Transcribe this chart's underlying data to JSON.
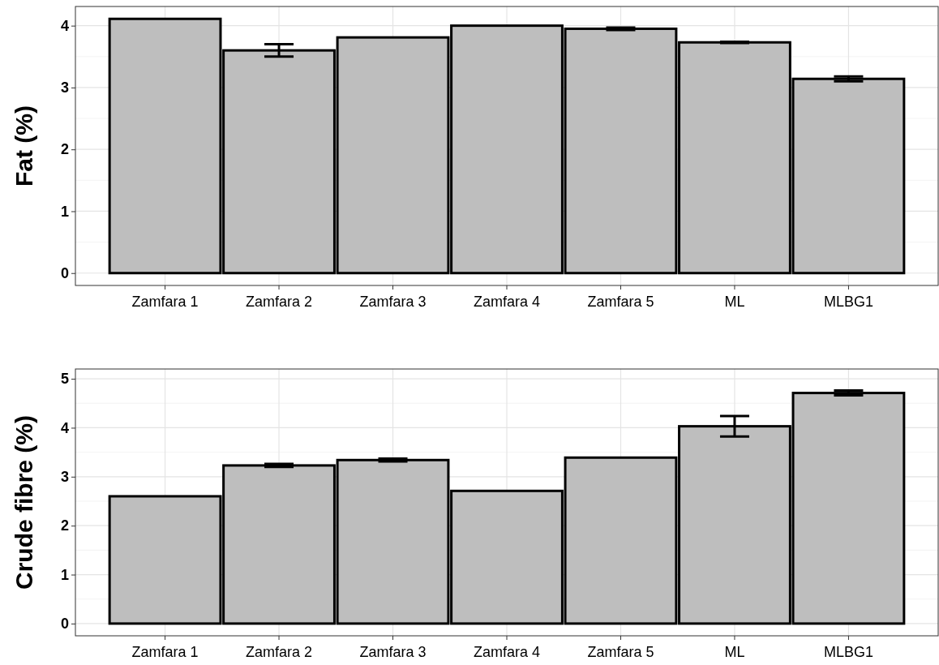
{
  "chart_data": [
    {
      "type": "bar",
      "ylabel": "Fat (%)",
      "categories": [
        "Zamfara 1",
        "Zamfara 2",
        "Zamfara 3",
        "Zamfara 4",
        "Zamfara 5",
        "ML",
        "MLBG1"
      ],
      "values": [
        4.11,
        3.6,
        3.81,
        4.0,
        3.95,
        3.73,
        3.14
      ],
      "errors": [
        null,
        0.1,
        null,
        null,
        0.02,
        0.01,
        0.04
      ],
      "color": "#bebebe",
      "ylim": [
        -0.2,
        4.31
      ],
      "yticks": [
        0,
        1,
        2,
        3,
        4
      ],
      "grid": true
    },
    {
      "type": "bar",
      "ylabel": "Crude fibre (%)",
      "categories": [
        "Zamfara 1",
        "Zamfara 2",
        "Zamfara 3",
        "Zamfara 4",
        "Zamfara 5",
        "ML",
        "MLBG1"
      ],
      "values": [
        2.6,
        3.23,
        3.34,
        2.71,
        3.39,
        4.03,
        4.71
      ],
      "errors": [
        null,
        0.03,
        0.03,
        null,
        null,
        0.21,
        0.05
      ],
      "color": "#bebebe",
      "ylim": [
        -0.25,
        5.2
      ],
      "yticks": [
        0,
        1,
        2,
        3,
        4,
        5
      ],
      "grid": true
    }
  ]
}
